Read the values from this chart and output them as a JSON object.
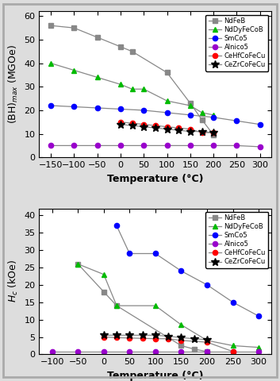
{
  "top_chart": {
    "xlabel": "Temperature (°C)",
    "ylabel": "(BH)$_{max}$ (MGOe)",
    "xlim": [
      -175,
      325
    ],
    "ylim": [
      0,
      62
    ],
    "yticks": [
      0,
      10,
      20,
      30,
      40,
      50,
      60
    ],
    "xticks": [
      -150,
      -100,
      -50,
      0,
      50,
      100,
      150,
      200,
      250,
      300
    ],
    "series": [
      {
        "label": "NdFeB",
        "line_color": "#888888",
        "marker_color": "#888888",
        "marker": "s",
        "x": [
          -150,
          -100,
          -50,
          0,
          25,
          100,
          150,
          175,
          200
        ],
        "y": [
          56,
          55,
          51,
          47,
          45,
          36,
          23,
          16,
          9.5
        ]
      },
      {
        "label": "NdDyFeCoB",
        "line_color": "#888888",
        "marker_color": "#00bb00",
        "marker": "^",
        "x": [
          -150,
          -100,
          -50,
          0,
          25,
          50,
          100,
          150,
          175,
          200
        ],
        "y": [
          40,
          37,
          34,
          31,
          29,
          29,
          24,
          22,
          19,
          18
        ]
      },
      {
        "label": "SmCo5",
        "line_color": "#888888",
        "marker_color": "#0000ff",
        "marker": "o",
        "x": [
          -150,
          -100,
          -50,
          0,
          50,
          100,
          150,
          200,
          250,
          300
        ],
        "y": [
          22,
          21.5,
          21,
          20.5,
          20,
          19,
          18,
          17,
          15.5,
          14
        ]
      },
      {
        "label": "Alnico5",
        "line_color": "#888888",
        "marker_color": "#9900cc",
        "marker": "o",
        "x": [
          -150,
          -100,
          -50,
          0,
          50,
          100,
          150,
          200,
          250,
          300
        ],
        "y": [
          5,
          5,
          5,
          5,
          5,
          5,
          5,
          5,
          5,
          4.5
        ]
      },
      {
        "label": "CeHfCoFeCu",
        "line_color": "#888888",
        "marker_color": "#ff0000",
        "marker": "o",
        "x": [
          0,
          25,
          50,
          75,
          100,
          125,
          150,
          175,
          200
        ],
        "y": [
          15,
          14.5,
          14,
          13.5,
          13,
          12.5,
          12,
          10.5,
          10.5
        ]
      },
      {
        "label": "CeZrCoFeCu",
        "line_color": "#888888",
        "marker_color": "#000000",
        "marker": "*",
        "x": [
          0,
          25,
          50,
          75,
          100,
          125,
          150,
          175,
          200
        ],
        "y": [
          14,
          13.5,
          13,
          12.5,
          12,
          11.5,
          11,
          11,
          10.5
        ]
      }
    ]
  },
  "bottom_chart": {
    "xlabel": "Temperature (°C)",
    "ylabel": "$H_c$ (kOe)",
    "xlim": [
      -125,
      325
    ],
    "ylim": [
      0,
      42
    ],
    "yticks": [
      0,
      5,
      10,
      15,
      20,
      25,
      30,
      35,
      40
    ],
    "xticks": [
      -100,
      -50,
      0,
      50,
      100,
      150,
      200,
      250,
      300
    ],
    "series": [
      {
        "label": "NdFeB",
        "line_color": "#888888",
        "marker_color": "#888888",
        "marker": "s",
        "x": [
          -50,
          0,
          25,
          150,
          175,
          200
        ],
        "y": [
          26,
          18,
          14,
          2.5,
          1.5,
          0.8
        ]
      },
      {
        "label": "NdDyFeCoB",
        "line_color": "#888888",
        "marker_color": "#00bb00",
        "marker": "^",
        "x": [
          -50,
          0,
          25,
          100,
          150,
          200,
          250,
          300
        ],
        "y": [
          26,
          23,
          14,
          14,
          8.5,
          4,
          2.5,
          2
        ]
      },
      {
        "label": "SmCo5",
        "line_color": "#888888",
        "marker_color": "#0000ff",
        "marker": "o",
        "x": [
          25,
          50,
          100,
          150,
          200,
          250,
          300
        ],
        "y": [
          37,
          29,
          29,
          24,
          20,
          15,
          11
        ]
      },
      {
        "label": "Alnico5",
        "line_color": "#888888",
        "marker_color": "#9900cc",
        "marker": "o",
        "x": [
          -100,
          -50,
          0,
          50,
          100,
          150,
          200,
          250,
          300
        ],
        "y": [
          0.8,
          0.8,
          0.8,
          0.8,
          0.8,
          0.8,
          0.8,
          0.8,
          0.8
        ]
      },
      {
        "label": "CeHfCoFeCu",
        "line_color": "#888888",
        "marker_color": "#ff0000",
        "marker": "o",
        "x": [
          0,
          25,
          50,
          75,
          100,
          125,
          150,
          200,
          250
        ],
        "y": [
          5,
          4.8,
          4.7,
          4.6,
          4.5,
          4.5,
          4,
          3.5,
          0.8
        ]
      },
      {
        "label": "CeZrCoFeCu",
        "line_color": "#888888",
        "marker_color": "#000000",
        "marker": "*",
        "x": [
          0,
          25,
          50,
          75,
          100,
          125,
          150,
          175,
          200
        ],
        "y": [
          5.5,
          5.5,
          5.5,
          5.5,
          5.5,
          5.2,
          4.8,
          4.5,
          4.2
        ]
      }
    ]
  },
  "outer_border_color": "#aaaaaa",
  "fig_facecolor": "#dddddd"
}
